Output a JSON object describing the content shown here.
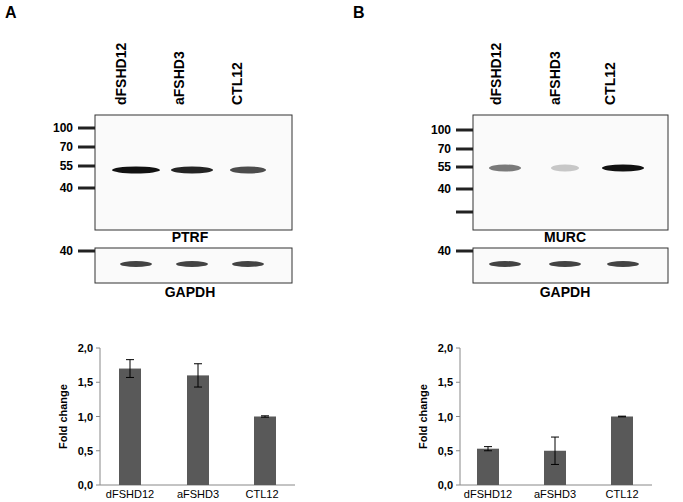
{
  "panels": [
    {
      "letter": "A",
      "lanes": [
        "dFSHD12",
        "aFSHD3",
        "CTL12"
      ],
      "blot": {
        "label": "PTRF",
        "markers": [
          100,
          70,
          55,
          40
        ]
      },
      "loading": {
        "label": "GAPDH",
        "markers": [
          40
        ]
      }
    },
    {
      "letter": "B",
      "lanes": [
        "dFSHD12",
        "aFSHD3",
        "CTL12"
      ],
      "blot": {
        "label": "MURC",
        "markers": [
          100,
          70,
          55,
          40
        ]
      },
      "loading": {
        "label": "GAPDH",
        "markers": [
          40
        ]
      }
    }
  ],
  "chart_data": [
    {
      "type": "bar",
      "y_label": "Fold change",
      "categories": [
        "dFSHD12",
        "aFSHD3",
        "CTL12"
      ],
      "values": [
        1.7,
        1.6,
        1.0
      ],
      "errors": [
        0.13,
        0.17,
        0.01
      ],
      "color": "#595959",
      "ylim": [
        0,
        2
      ],
      "yticks": [
        {
          "value": 0,
          "label": "0,0"
        },
        {
          "value": 0.5,
          "label": "0,5"
        },
        {
          "value": 1,
          "label": "1,0"
        },
        {
          "value": 1.5,
          "label": "1,5"
        },
        {
          "value": 2,
          "label": "2,0"
        }
      ],
      "grid": false
    },
    {
      "type": "bar",
      "y_label": "Fold change",
      "categories": [
        "dFSHD12",
        "aFSHD3",
        "CTL12"
      ],
      "values": [
        0.53,
        0.5,
        1.0
      ],
      "errors": [
        0.03,
        0.2,
        0.005
      ],
      "color": "#595959",
      "ylim": [
        0,
        2
      ],
      "yticks": [
        {
          "value": 0,
          "label": "0,0"
        },
        {
          "value": 0.5,
          "label": "0,5"
        },
        {
          "value": 1,
          "label": "1,0"
        },
        {
          "value": 1.5,
          "label": "1,5"
        },
        {
          "value": 2,
          "label": "2,0"
        }
      ],
      "grid": false
    }
  ]
}
